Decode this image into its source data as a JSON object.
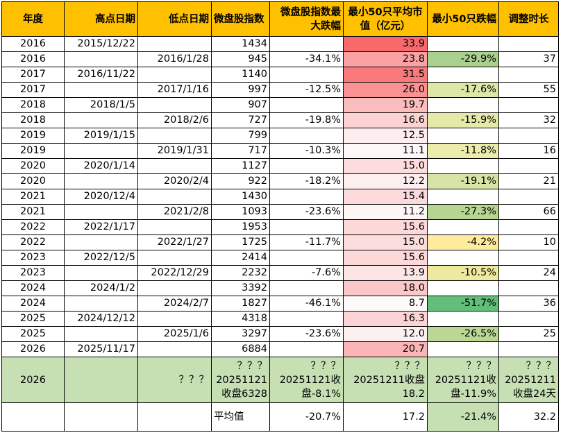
{
  "headers": [
    "年度",
    "高点日期",
    "低点日期",
    "微盘股指数",
    "微盘股指数最大跌幅",
    "最小50只平均市值（亿元）",
    "最小50只跌幅",
    "调整时长"
  ],
  "rows": [
    {
      "year": "2016",
      "high": "2015/12/22",
      "low": "",
      "index": "1434",
      "drop": "",
      "cap": "33.9",
      "capColor": "#f8696b",
      "drop50": "",
      "drop50Color": "",
      "dur": ""
    },
    {
      "year": "2016",
      "high": "",
      "low": "2016/1/28",
      "index": "945",
      "drop": "-34.1%",
      "cap": "23.8",
      "capColor": "#faa1a3",
      "drop50": "-29.9%",
      "drop50Color": "#a9d08e",
      "dur": "37"
    },
    {
      "year": "2017",
      "high": "2016/11/22",
      "low": "",
      "index": "1140",
      "drop": "",
      "cap": "31.5",
      "capColor": "#f97a7c",
      "drop50": "",
      "drop50Color": "",
      "dur": ""
    },
    {
      "year": "2017",
      "high": "",
      "low": "2017/1/16",
      "index": "997",
      "drop": "-12.5%",
      "cap": "26.0",
      "capColor": "#fa9193",
      "drop50": "-17.6%",
      "drop50Color": "#dde7a8",
      "dur": "55"
    },
    {
      "year": "2018",
      "high": "2018/1/5",
      "low": "",
      "index": "907",
      "drop": "",
      "cap": "19.7",
      "capColor": "#fbbcbe",
      "drop50": "",
      "drop50Color": "",
      "dur": ""
    },
    {
      "year": "2018",
      "high": "",
      "low": "2018/2/6",
      "index": "727",
      "drop": "-19.8%",
      "cap": "16.6",
      "capColor": "#fcd2d3",
      "drop50": "-15.9%",
      "drop50Color": "#e6eaa8",
      "dur": "32"
    },
    {
      "year": "2019",
      "high": "2019/1/15",
      "low": "",
      "index": "799",
      "drop": "",
      "cap": "12.5",
      "capColor": "#fdedee",
      "drop50": "",
      "drop50Color": "",
      "dur": ""
    },
    {
      "year": "2019",
      "high": "",
      "low": "2019/1/31",
      "index": "717",
      "drop": "-10.3%",
      "cap": "11.1",
      "capColor": "#fef6f7",
      "drop50": "-11.8%",
      "drop50Color": "#ecedab",
      "dur": "16"
    },
    {
      "year": "2020",
      "high": "2020/1/14",
      "low": "",
      "index": "1127",
      "drop": "",
      "cap": "15.0",
      "capColor": "#fcdcdd",
      "drop50": "",
      "drop50Color": "",
      "dur": ""
    },
    {
      "year": "2020",
      "high": "",
      "low": "2020/2/4",
      "index": "922",
      "drop": "-18.2%",
      "cap": "12.2",
      "capColor": "#fdeff0",
      "drop50": "-19.1%",
      "drop50Color": "#d6e4a6",
      "dur": "21"
    },
    {
      "year": "2021",
      "high": "2020/12/4",
      "low": "",
      "index": "1430",
      "drop": "",
      "cap": "15.4",
      "capColor": "#fcd9da",
      "drop50": "",
      "drop50Color": "",
      "dur": ""
    },
    {
      "year": "2021",
      "high": "",
      "low": "2021/2/8",
      "index": "1093",
      "drop": "-23.6%",
      "cap": "11.2",
      "capColor": "#fef5f6",
      "drop50": "-27.3%",
      "drop50Color": "#b5d591",
      "dur": "66"
    },
    {
      "year": "2022",
      "high": "2022/1/17",
      "low": "",
      "index": "1953",
      "drop": "",
      "cap": "15.6",
      "capColor": "#fcd8d9",
      "drop50": "",
      "drop50Color": "",
      "dur": ""
    },
    {
      "year": "2022",
      "high": "",
      "low": "2022/1/27",
      "index": "1725",
      "drop": "-11.7%",
      "cap": "15.0",
      "capColor": "#fcdcdd",
      "drop50": "-4.2%",
      "drop50Color": "#ffeb9c",
      "dur": "10"
    },
    {
      "year": "2023",
      "high": "2022/12/5",
      "low": "",
      "index": "2414",
      "drop": "",
      "cap": "15.6",
      "capColor": "#fcd8d9",
      "drop50": "",
      "drop50Color": "",
      "dur": ""
    },
    {
      "year": "2023",
      "high": "",
      "low": "2022/12/29",
      "index": "2232",
      "drop": "-7.6%",
      "cap": "13.9",
      "capColor": "#fde4e5",
      "drop50": "-10.5%",
      "drop50Color": "#efe9a0",
      "dur": "24"
    },
    {
      "year": "2024",
      "high": "2024/1/2",
      "low": "",
      "index": "3392",
      "drop": "",
      "cap": "18.0",
      "capColor": "#fbc7c9",
      "drop50": "",
      "drop50Color": "",
      "dur": ""
    },
    {
      "year": "2024",
      "high": "",
      "low": "2024/2/7",
      "index": "1827",
      "drop": "-46.1%",
      "cap": "8.7",
      "capColor": "#fefafa",
      "drop50": "-51.7%",
      "drop50Color": "#63be7b",
      "dur": "36"
    },
    {
      "year": "2025",
      "high": "2024/12/12",
      "low": "",
      "index": "4318",
      "drop": "",
      "cap": "16.3",
      "capColor": "#fcd4d5",
      "drop50": "",
      "drop50Color": "",
      "dur": ""
    },
    {
      "year": "2025",
      "high": "",
      "low": "2025/1/6",
      "index": "3297",
      "drop": "-23.6%",
      "cap": "12.0",
      "capColor": "#fdf0f1",
      "drop50": "-26.5%",
      "drop50Color": "#bad793",
      "dur": "25"
    },
    {
      "year": "2026",
      "high": "2025/11/17",
      "low": "",
      "index": "6884",
      "drop": "",
      "cap": "20.7",
      "capColor": "#fbb5b7",
      "drop50": "",
      "drop50Color": "",
      "dur": ""
    }
  ],
  "special": {
    "year": "2026",
    "high": "",
    "low": "？？？",
    "index": "？？？ 20251121 收盘6328",
    "drop": "？？？ 20251121收 盘-8.1%",
    "cap": "？？？ 20251211收盘 18.2",
    "drop50": "？？？ 20251121收 盘-11.9%",
    "dur": "？？？ 20251211 收盘24天",
    "bg": "#c6e0b4"
  },
  "average": {
    "label": "平均值",
    "drop": "-20.7%",
    "cap": "17.2",
    "drop50": "-21.4%",
    "drop50Color": "#c6e0b4",
    "dur": "32.2"
  },
  "colors": {
    "header": "#ffc000"
  }
}
